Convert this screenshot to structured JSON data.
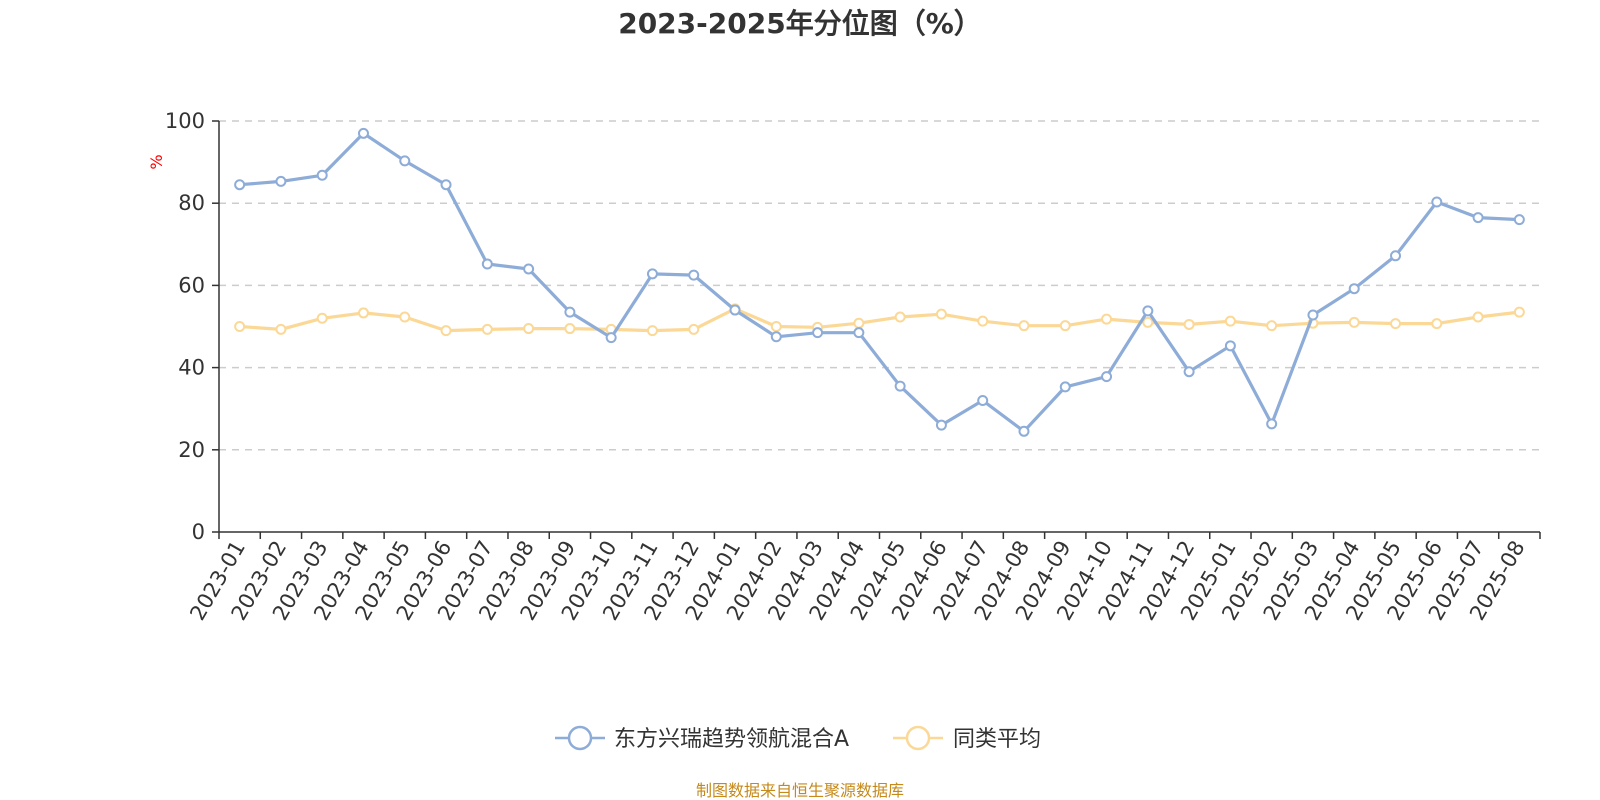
{
  "title": "2023-2025年分位图（%）",
  "source": "制图数据来自恒生聚源数据库",
  "colors": {
    "series_a": "#8eacd8",
    "series_b": "#fbd896",
    "unit": "#ff0000",
    "source": "#c58a1a",
    "axis": "#333333",
    "grid": "#cccccc"
  },
  "chart_data": {
    "type": "line",
    "title": "2023-2025年分位图（%）",
    "ylabel": "%",
    "xlabel": "",
    "ylim": [
      0,
      100
    ],
    "yticks": [
      0,
      20,
      40,
      60,
      80,
      100
    ],
    "grid": true,
    "legend_position": "bottom-center",
    "categories": [
      "2023-01",
      "2023-02",
      "2023-03",
      "2023-04",
      "2023-05",
      "2023-06",
      "2023-07",
      "2023-08",
      "2023-09",
      "2023-10",
      "2023-11",
      "2023-12",
      "2024-01",
      "2024-02",
      "2024-03",
      "2024-04",
      "2024-05",
      "2024-06",
      "2024-07",
      "2024-08",
      "2024-09",
      "2024-10",
      "2024-11",
      "2024-12",
      "2025-01",
      "2025-02",
      "2025-03",
      "2025-04",
      "2025-05",
      "2025-06",
      "2025-07",
      "2025-08"
    ],
    "series": [
      {
        "name": "东方兴瑞趋势领航混合A",
        "values": [
          84.5,
          85.3,
          86.8,
          97.0,
          90.3,
          84.5,
          65.2,
          64.0,
          53.5,
          47.3,
          62.8,
          62.5,
          54.0,
          47.5,
          48.5,
          48.5,
          35.5,
          26.0,
          32.0,
          24.5,
          35.3,
          37.8,
          53.8,
          39.0,
          45.3,
          26.3,
          52.8,
          59.2,
          67.2,
          80.3,
          76.5,
          76.0
        ]
      },
      {
        "name": "同类平均",
        "values": [
          50.0,
          49.3,
          52.0,
          53.3,
          52.3,
          49.0,
          49.3,
          49.5,
          49.5,
          49.3,
          49.0,
          49.3,
          54.3,
          50.0,
          49.8,
          50.8,
          52.3,
          53.0,
          51.3,
          50.2,
          50.2,
          51.8,
          51.0,
          50.5,
          51.3,
          50.2,
          50.8,
          51.0,
          50.7,
          50.7,
          52.3,
          53.5
        ]
      }
    ]
  }
}
